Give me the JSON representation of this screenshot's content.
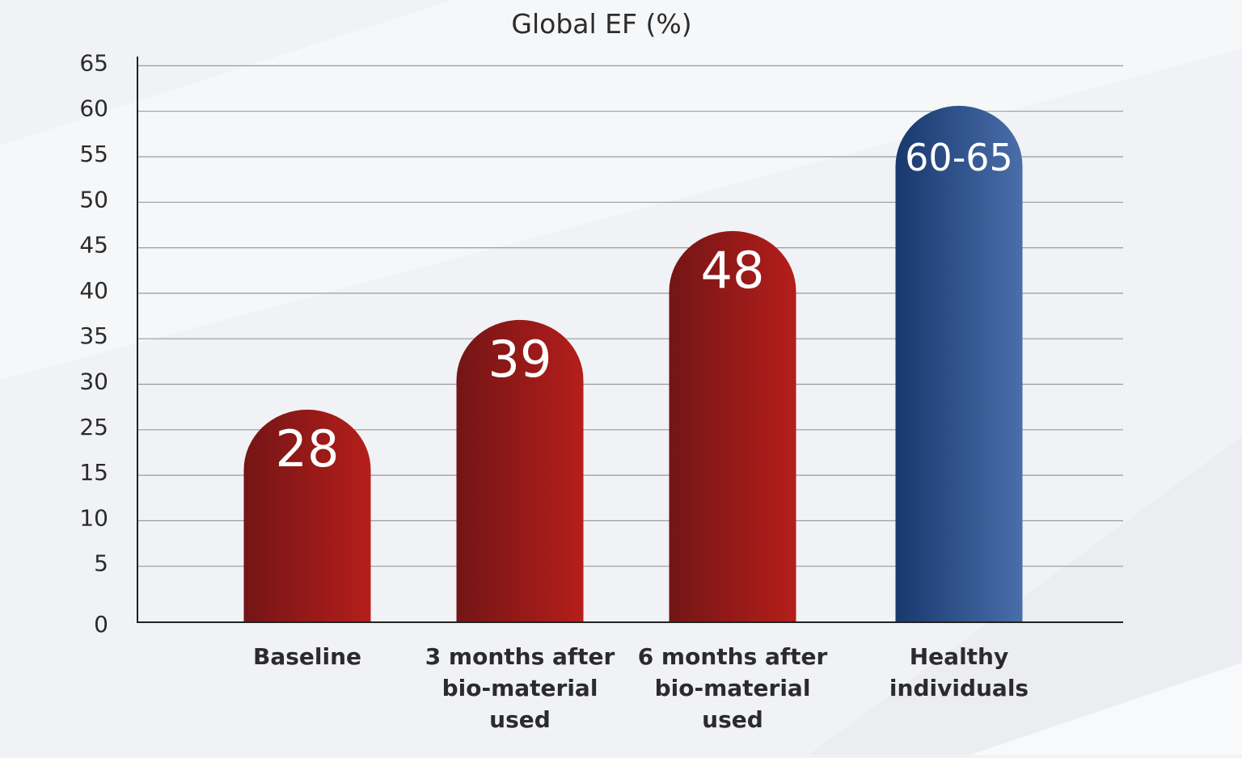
{
  "chart_data": {
    "type": "bar",
    "title": "Global EF (%)",
    "xlabel": "",
    "ylabel": "",
    "categories": [
      [
        "Baseline"
      ],
      [
        "3 months after",
        "bio-material",
        "used"
      ],
      [
        "6 months after",
        "bio-material",
        "used"
      ],
      [
        "Healthy",
        "individuals"
      ]
    ],
    "values": [
      28,
      39,
      48,
      62.5
    ],
    "data_labels": [
      "28",
      "39",
      "48",
      "60-65"
    ],
    "range": [
      null,
      null,
      null,
      [
        60,
        65
      ]
    ],
    "y_tick_labels": [
      "0",
      "5",
      "10",
      "15",
      "25",
      "30",
      "35",
      "40",
      "45",
      "50",
      "55",
      "60",
      "65"
    ],
    "ylim": [
      0,
      65
    ],
    "grid": true,
    "legend": "none",
    "colors": {
      "baseline_series": [
        "#731516",
        "#b51e1b"
      ],
      "healthy": [
        "#18386d",
        "#4a6eaa"
      ],
      "axis": "#222222",
      "grid": "#9a9a9a",
      "text": "#2b2b2b"
    }
  }
}
